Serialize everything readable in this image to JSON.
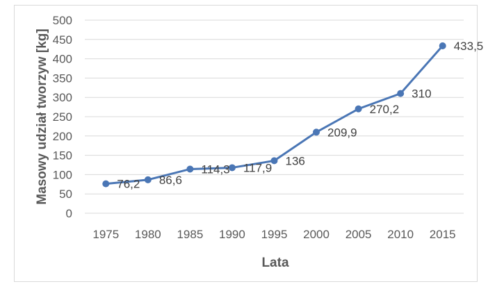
{
  "chart_data": {
    "type": "line",
    "title": "",
    "xlabel": "Lata",
    "ylabel": "Masowy udział tworzyw [kg]",
    "categories": [
      "1975",
      "1980",
      "1985",
      "1990",
      "1995",
      "2000",
      "2005",
      "2010",
      "2015"
    ],
    "series": [
      {
        "values": [
          76.2,
          86.6,
          114.3,
          117.9,
          136,
          209.9,
          270.2,
          310,
          433.5
        ],
        "labels": [
          "76,2",
          "86,6",
          "114,3",
          "117,9",
          "136",
          "209,9",
          "270,2",
          "310",
          "433,5"
        ],
        "color": "#4a76b5"
      }
    ],
    "ylim": [
      0,
      500
    ],
    "yticks": [
      "0",
      "50",
      "100",
      "150",
      "200",
      "250",
      "300",
      "350",
      "400",
      "450",
      "500"
    ],
    "grid": true,
    "gridColor": "#d9d9d9"
  }
}
